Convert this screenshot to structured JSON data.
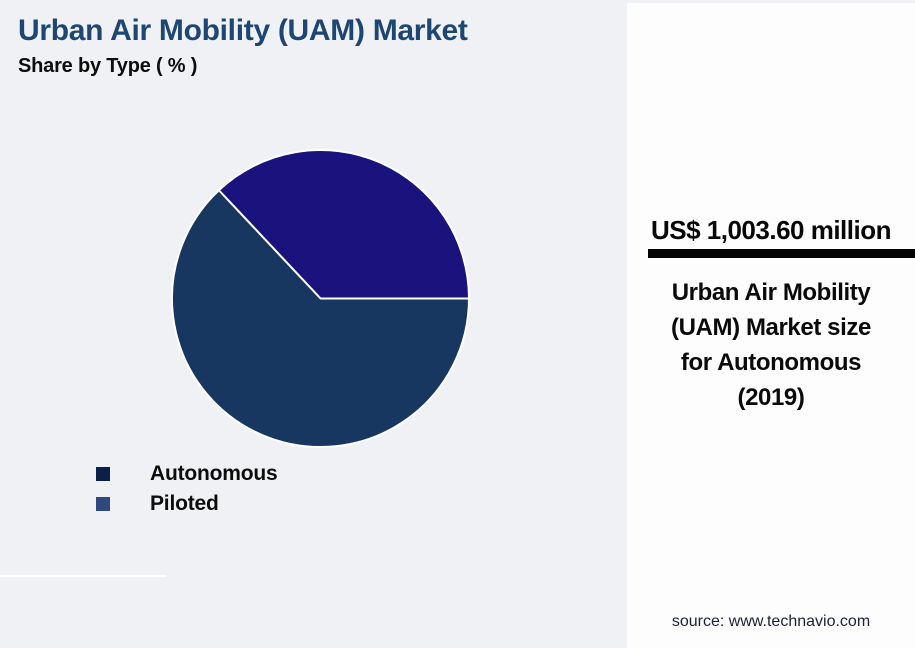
{
  "page": {
    "background_color": "#f0f1f4",
    "panel_background_color": "#fdfdfe"
  },
  "header": {
    "title": "Urban Air Mobility (UAM) Market",
    "subtitle": "Share by Type ( % )",
    "title_color": "#1e4672"
  },
  "chart_data": {
    "type": "pie",
    "title": "Urban Air Mobility (UAM) Market",
    "subtitle": "Share by Type ( % )",
    "unit": "percent share",
    "series": [
      {
        "name": "Autonomous",
        "value": 37,
        "slice_color": "#1a137e",
        "legend_color": "#0a2048"
      },
      {
        "name": "Piloted",
        "value": 63,
        "slice_color": "#173660",
        "legend_color": "#2e4a7c"
      }
    ],
    "layout": {
      "start_angle_deg": 0,
      "direction": "counterclockwise",
      "slice_border_color": "#ffffff",
      "legend_position": "bottom-left",
      "data_labels": "none"
    }
  },
  "highlight_panel": {
    "value": "US$ 1,003.60 million",
    "description": "Urban Air Mobility\n(UAM) Market size\nfor Autonomous\n(2019)",
    "divider_color": "#040404",
    "source": "source: www.technavio.com"
  }
}
